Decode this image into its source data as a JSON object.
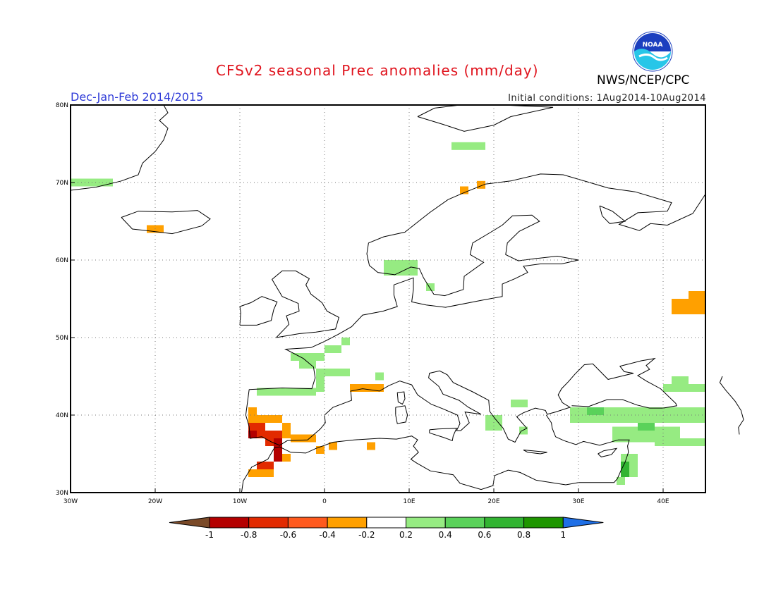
{
  "title": "CFSv2 seasonal Prec anomalies (mm/day)",
  "season_label": "Dec-Jan-Feb 2014/2015",
  "initial_conditions": "Initial conditions: 1Aug2014-10Aug2014",
  "agency": "NWS/NCEP/CPC",
  "logo_text": "NOAA",
  "map": {
    "lon_range": [
      -30,
      45
    ],
    "lat_range": [
      30,
      80
    ],
    "lon_ticks": [
      {
        "v": -30,
        "label": "30W"
      },
      {
        "v": -20,
        "label": "20W"
      },
      {
        "v": -10,
        "label": "10W"
      },
      {
        "v": 0,
        "label": "0"
      },
      {
        "v": 10,
        "label": "10E"
      },
      {
        "v": 20,
        "label": "20E"
      },
      {
        "v": 30,
        "label": "30E"
      },
      {
        "v": 40,
        "label": "40E"
      }
    ],
    "lat_ticks": [
      {
        "v": 30,
        "label": "30N"
      },
      {
        "v": 40,
        "label": "40N"
      },
      {
        "v": 50,
        "label": "50N"
      },
      {
        "v": 60,
        "label": "60N"
      },
      {
        "v": 70,
        "label": "70N"
      },
      {
        "v": 80,
        "label": "80N"
      }
    ],
    "grid": "dotted"
  },
  "colorbar": {
    "labels": [
      "-1",
      "-0.8",
      "-0.6",
      "-0.4",
      "-0.2",
      "0.2",
      "0.4",
      "0.6",
      "0.8",
      "1"
    ],
    "colors": [
      "#7a4a28",
      "#b40000",
      "#e22a00",
      "#ff5a1e",
      "#ffa000",
      "#ffffff",
      "#96eb82",
      "#5ad25a",
      "#32b432",
      "#1e9600",
      "#1f6fe6"
    ]
  },
  "anomaly_cells": [
    {
      "lon": -30,
      "lat": 69.5,
      "w": 5,
      "h": 1,
      "level": "0.2"
    },
    {
      "lon": -21,
      "lat": 63.5,
      "w": 2,
      "h": 1,
      "level": "-0.2"
    },
    {
      "lon": 7,
      "lat": 58,
      "w": 4,
      "h": 2,
      "level": "0.2"
    },
    {
      "lon": 12,
      "lat": 56,
      "w": 1,
      "h": 1,
      "level": "0.2"
    },
    {
      "lon": 16,
      "lat": 68.5,
      "w": 1,
      "h": 1,
      "level": "-0.2"
    },
    {
      "lon": 18,
      "lat": 69.2,
      "w": 1,
      "h": 1,
      "level": "-0.2"
    },
    {
      "lon": 15,
      "lat": 74.2,
      "w": 4,
      "h": 1,
      "level": "0.2"
    },
    {
      "lon": -4,
      "lat": 47,
      "w": 4,
      "h": 1,
      "level": "0.2"
    },
    {
      "lon": 0,
      "lat": 48,
      "w": 2,
      "h": 1,
      "level": "0.2"
    },
    {
      "lon": 2,
      "lat": 49,
      "w": 1,
      "h": 1,
      "level": "0.2"
    },
    {
      "lon": -1,
      "lat": 43,
      "w": 1,
      "h": 3,
      "level": "0.2"
    },
    {
      "lon": -3,
      "lat": 46,
      "w": 2,
      "h": 1,
      "level": "0.2"
    },
    {
      "lon": 0,
      "lat": 45,
      "w": 3,
      "h": 1,
      "level": "0.2"
    },
    {
      "lon": -8,
      "lat": 42.5,
      "w": 7,
      "h": 1,
      "level": "0.2"
    },
    {
      "lon": 6,
      "lat": 44.5,
      "w": 1,
      "h": 1,
      "level": "0.2"
    },
    {
      "lon": 3,
      "lat": 43,
      "w": 4,
      "h": 1,
      "level": "-0.2"
    },
    {
      "lon": -9,
      "lat": 38,
      "w": 1,
      "h": 3,
      "level": "-0.2"
    },
    {
      "lon": -8,
      "lat": 39,
      "w": 3,
      "h": 1,
      "level": "-0.2"
    },
    {
      "lon": -5,
      "lat": 37,
      "w": 1,
      "h": 2,
      "level": "-0.2"
    },
    {
      "lon": -4,
      "lat": 36.5,
      "w": 3,
      "h": 1,
      "level": "-0.2"
    },
    {
      "lon": -9,
      "lat": 37,
      "w": 2,
      "h": 2,
      "level": "-0.6"
    },
    {
      "lon": -7,
      "lat": 37,
      "w": 1,
      "h": 1,
      "level": "-0.6"
    },
    {
      "lon": -9,
      "lat": 37,
      "w": 1,
      "h": 1,
      "level": "-0.8"
    },
    {
      "lon": -7,
      "lat": 36,
      "w": 2,
      "h": 2,
      "level": "-0.6"
    },
    {
      "lon": -6,
      "lat": 34,
      "w": 1,
      "h": 3,
      "level": "-0.8"
    },
    {
      "lon": -8,
      "lat": 33,
      "w": 2,
      "h": 1,
      "level": "-0.6"
    },
    {
      "lon": -9,
      "lat": 32,
      "w": 3,
      "h": 1,
      "level": "-0.2"
    },
    {
      "lon": -5,
      "lat": 34,
      "w": 1,
      "h": 1,
      "level": "-0.2"
    },
    {
      "lon": -1,
      "lat": 35,
      "w": 1,
      "h": 1,
      "level": "-0.2"
    },
    {
      "lon": 0.5,
      "lat": 35.5,
      "w": 1,
      "h": 1,
      "level": "-0.2"
    },
    {
      "lon": 5,
      "lat": 35.5,
      "w": 1,
      "h": 1,
      "level": "-0.2"
    },
    {
      "lon": 19,
      "lat": 38,
      "w": 2,
      "h": 2,
      "level": "0.2"
    },
    {
      "lon": 22,
      "lat": 41,
      "w": 2,
      "h": 1,
      "level": "0.2"
    },
    {
      "lon": 23,
      "lat": 37.5,
      "w": 1,
      "h": 1,
      "level": "0.2"
    },
    {
      "lon": 29,
      "lat": 39,
      "w": 16,
      "h": 2,
      "level": "0.2"
    },
    {
      "lon": 31,
      "lat": 40,
      "w": 2,
      "h": 1,
      "level": "0.4"
    },
    {
      "lon": 34,
      "lat": 36.5,
      "w": 8,
      "h": 2,
      "level": "0.2"
    },
    {
      "lon": 37,
      "lat": 38,
      "w": 2,
      "h": 1,
      "level": "0.4"
    },
    {
      "lon": 39,
      "lat": 36,
      "w": 6,
      "h": 1,
      "level": "0.2"
    },
    {
      "lon": 35,
      "lat": 32,
      "w": 2,
      "h": 3,
      "level": "0.2"
    },
    {
      "lon": 35,
      "lat": 32,
      "w": 1,
      "h": 2,
      "level": "0.6"
    },
    {
      "lon": 34.5,
      "lat": 31,
      "w": 1,
      "h": 1,
      "level": "0.2"
    },
    {
      "lon": 40,
      "lat": 43,
      "w": 5,
      "h": 1,
      "level": "0.2"
    },
    {
      "lon": 41,
      "lat": 44,
      "w": 2,
      "h": 1,
      "level": "0.2"
    },
    {
      "lon": 41,
      "lat": 53,
      "w": 4,
      "h": 2,
      "level": "-0.2"
    },
    {
      "lon": 43,
      "lat": 55,
      "w": 2,
      "h": 1,
      "level": "-0.2"
    }
  ]
}
